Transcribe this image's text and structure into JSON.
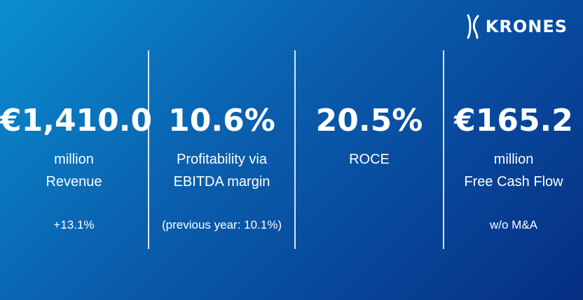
{
  "brand": {
    "name": "KRONES",
    "logo_icon": "krones-k-mark-icon"
  },
  "kpis": [
    {
      "value": "€1,410.0",
      "label_line1": "million",
      "label_line2": "Revenue",
      "note": "+13.1%"
    },
    {
      "value": "10.6%",
      "label_line1": "Profitability via",
      "label_line2": "EBITDA margin",
      "note": "(previous year: 10.1%)"
    },
    {
      "value": "20.5%",
      "label_line1": "ROCE",
      "label_line2": "",
      "note": ""
    },
    {
      "value": "€165.2",
      "label_line1": "million",
      "label_line2": "Free Cash Flow",
      "note": "w/o M&A"
    }
  ],
  "colors": {
    "background_start": "#0a8fd0",
    "background_end": "#062f82",
    "text": "#ffffff"
  }
}
